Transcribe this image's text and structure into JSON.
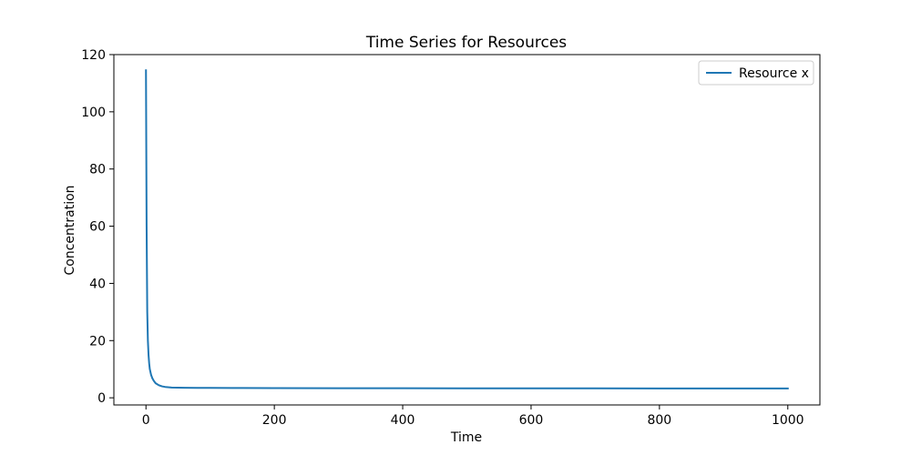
{
  "chart_data": {
    "type": "line",
    "title": "Time Series for Resources",
    "xlabel": "Time",
    "ylabel": "Concentration",
    "xlim": [
      -50,
      1050
    ],
    "ylim": [
      -2.5,
      120
    ],
    "xticks": [
      0,
      200,
      400,
      600,
      800,
      1000
    ],
    "yticks": [
      0,
      20,
      40,
      60,
      80,
      100,
      120
    ],
    "grid": false,
    "legend_position": "top-right",
    "series": [
      {
        "name": "Resource x",
        "color": "#1f77b4",
        "x": [
          0,
          1,
          2,
          3,
          4,
          5,
          6,
          8,
          10,
          12,
          15,
          20,
          25,
          30,
          40,
          50,
          60,
          80,
          100,
          150,
          200,
          300,
          400,
          500,
          600,
          700,
          800,
          900,
          1000
        ],
        "y": [
          114.5,
          60,
          30,
          20,
          15,
          12,
          10,
          8,
          6.8,
          6,
          5.1,
          4.4,
          4.0,
          3.8,
          3.6,
          3.55,
          3.5,
          3.48,
          3.45,
          3.42,
          3.4,
          3.35,
          3.33,
          3.31,
          3.3,
          3.29,
          3.28,
          3.27,
          3.26
        ]
      }
    ]
  }
}
